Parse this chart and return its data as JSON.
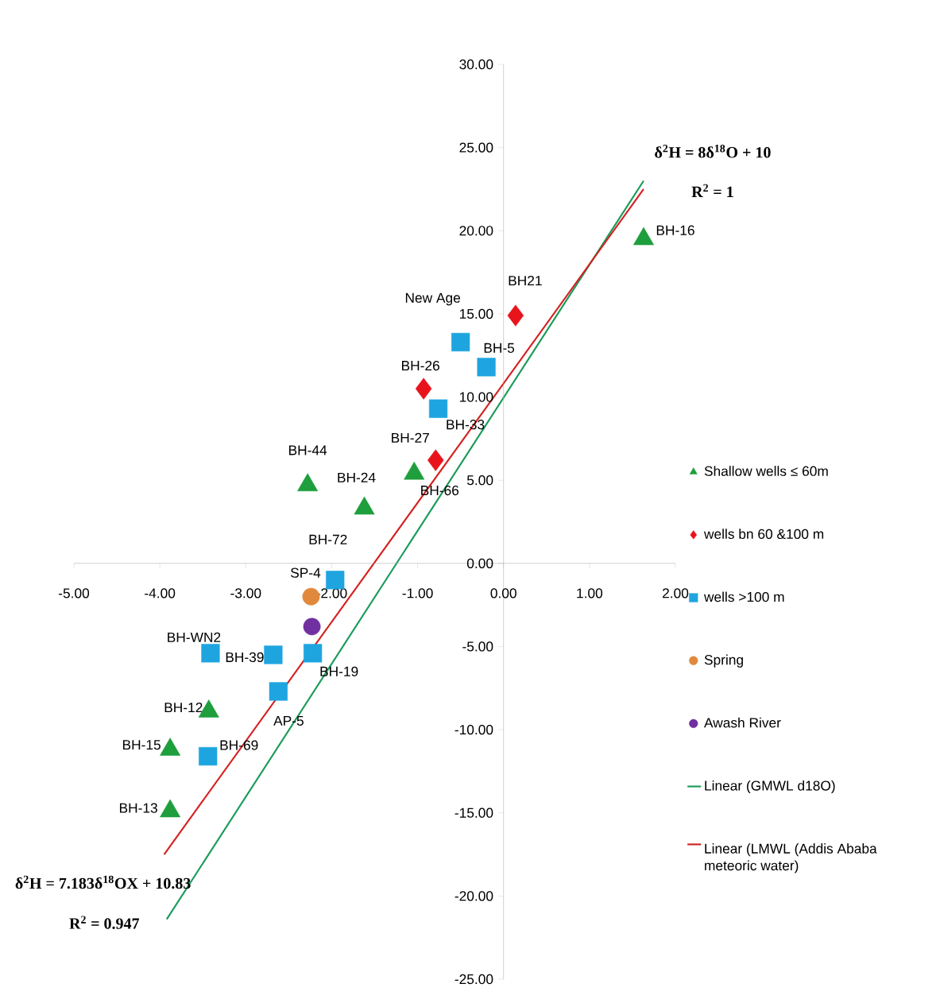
{
  "chart_data": {
    "type": "scatter",
    "xlim": [
      -5,
      2
    ],
    "ylim": [
      -25,
      30
    ],
    "xticks": [
      {
        "value": -5,
        "label": "-5.00"
      },
      {
        "value": -4,
        "label": "-4.00"
      },
      {
        "value": -3,
        "label": "-3.00"
      },
      {
        "value": -2,
        "label": "-2.00"
      },
      {
        "value": -1,
        "label": "-1.00"
      },
      {
        "value": 0,
        "label": "0.00"
      },
      {
        "value": 1,
        "label": "1.00"
      },
      {
        "value": 2,
        "label": "2.00"
      }
    ],
    "yticks": [
      {
        "value": -25,
        "label": "-25.00"
      },
      {
        "value": -20,
        "label": "-20.00"
      },
      {
        "value": -15,
        "label": "-15.00"
      },
      {
        "value": -10,
        "label": "-10.00"
      },
      {
        "value": -5,
        "label": "-5.00"
      },
      {
        "value": 0,
        "label": "0.00"
      },
      {
        "value": 5,
        "label": "5.00"
      },
      {
        "value": 10,
        "label": "10.00"
      },
      {
        "value": 15,
        "label": "15.00"
      },
      {
        "value": 20,
        "label": "20.00"
      },
      {
        "value": 25,
        "label": "25.00"
      },
      {
        "value": 30,
        "label": "30.00"
      }
    ],
    "legend": "right",
    "series": [
      {
        "name": "Shallow wells ≤ 60m",
        "marker": "triangle",
        "color": "#1e9e3c",
        "x": [
          1.63,
          -2.28,
          -1.62,
          -1.04,
          -3.43,
          -3.88,
          -3.88
        ],
        "values": [
          19.5,
          4.7,
          3.3,
          5.4,
          -8.9,
          -11.2,
          -14.9
        ]
      },
      {
        "name": "wells bn 60 &100 m",
        "marker": "diamond",
        "color": "#e8141c",
        "x": [
          0.14,
          -0.93,
          -0.79
        ],
        "values": [
          14.9,
          10.5,
          6.2
        ]
      },
      {
        "name": "wells >100 m",
        "marker": "square",
        "color": "#1ea5e0",
        "x": [
          -0.5,
          -0.2,
          -0.76,
          -1.96,
          -2.22,
          -2.68,
          -3.41,
          -2.62,
          -3.44
        ],
        "values": [
          13.3,
          11.8,
          9.3,
          -1.0,
          -5.4,
          -5.5,
          -5.4,
          -7.7,
          -11.6
        ]
      },
      {
        "name": "Spring",
        "marker": "circle",
        "color": "#e0893c",
        "x": [
          -2.24
        ],
        "values": [
          -2.0
        ]
      },
      {
        "name": "Awash River",
        "marker": "circle",
        "color": "#7030a0",
        "x": [
          -2.23
        ],
        "values": [
          -3.8
        ]
      },
      {
        "name": "Linear (GMWL d18O)",
        "type": "line",
        "marker": "none",
        "color": "#1a9a5a",
        "x": [
          -3.92,
          1.63
        ],
        "values": [
          -21.4,
          23.0
        ]
      },
      {
        "name": "Linear (LMWL (Addis Ababa meteoric water)",
        "type": "line",
        "marker": "none",
        "color": "#d42020",
        "x": [
          -3.95,
          1.63
        ],
        "values": [
          -17.5,
          22.5
        ]
      }
    ],
    "annotations": [
      "δ$^{2}$H = 8δ$^{18}$O + 10",
      "R$^{2}$ = 1",
      "δ$^{2}$H = 7.183δ$^{18}$OX + 10.83",
      "R$^{2}$ = 0.947",
      {
        "text": "BH-16",
        "x": 1.63,
        "y": 19.5
      },
      {
        "text": "BH21",
        "x": 0.14,
        "y": 14.9
      },
      {
        "text": "New Age",
        "x": -0.5,
        "y": 13.3
      },
      {
        "text": "BH-26",
        "x": -0.93,
        "y": 10.5
      },
      {
        "text": "BH-5",
        "x": -0.2,
        "y": 11.8
      },
      {
        "text": "BH-33",
        "x": -0.76,
        "y": 9.3
      },
      {
        "text": "BH-27",
        "x": -1.04,
        "y": 5.4
      },
      {
        "text": "BH-66",
        "x": -0.79,
        "y": 6.2
      },
      {
        "text": "BH-44",
        "x": -2.28,
        "y": 4.7
      },
      {
        "text": "BH-24",
        "x": -1.62,
        "y": 3.3
      },
      {
        "text": "BH-72",
        "x": -1.96,
        "y": -1.0
      },
      {
        "text": "SP-4",
        "x": -2.24,
        "y": -2.0
      },
      {
        "text": "BH-WN2",
        "x": -3.41,
        "y": -5.4
      },
      {
        "text": "BH-39",
        "x": -2.68,
        "y": -5.5
      },
      {
        "text": "BH-19",
        "x": -2.22,
        "y": -5.4
      },
      {
        "text": "BH-12",
        "x": -3.43,
        "y": -8.9
      },
      {
        "text": "AP-5",
        "x": -2.62,
        "y": -7.7
      },
      {
        "text": "BH-15",
        "x": -3.88,
        "y": -11.2
      },
      {
        "text": "BH-69",
        "x": -3.44,
        "y": -11.6
      },
      {
        "text": "BH-13",
        "x": -3.88,
        "y": -14.9
      }
    ]
  }
}
